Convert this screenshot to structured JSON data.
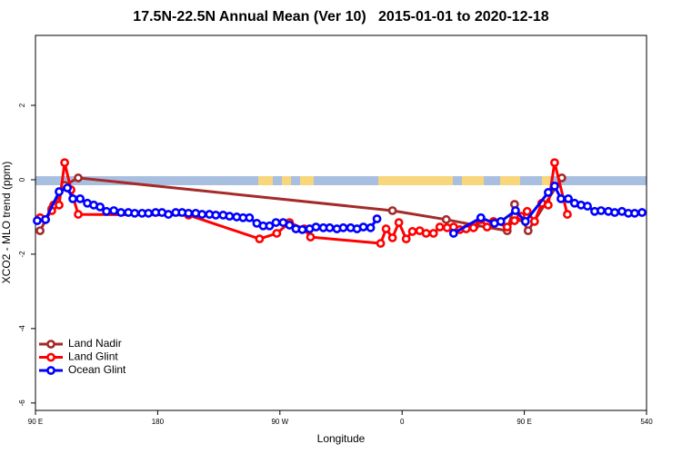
{
  "chart_data": {
    "type": "line",
    "title": "17.5N-22.5N Annual Mean (Ver 10)   2015-01-01 to 2020-12-18",
    "x_label": "Longitude",
    "y_label": "XCO2 - MLO trend (ppm)",
    "xlim": [
      90,
      540
    ],
    "ylim": [
      -6.2,
      3.88
    ],
    "xticks": [
      {
        "value": 90,
        "label": "90 E"
      },
      180,
      {
        "value": 270,
        "label": "90 W"
      },
      {
        "value": 360,
        "label": "0"
      },
      {
        "value": 450,
        "label": "90 E"
      },
      540
    ],
    "yticks": [
      2,
      0,
      -2,
      -4,
      -6
    ],
    "legend": "bottom-left",
    "series": [
      {
        "name": "Land Nadir",
        "color": "#a52a2a",
        "x": [
          93.4,
          102.0,
          111.5,
          121.5,
          352.9,
          392.5,
          413.9,
          437.4,
          442.8,
          447.5,
          452.8,
          477.6
        ],
        "values": [
          -1.37,
          -0.78,
          -0.15,
          0.05,
          -0.83,
          -1.07,
          -1.22,
          -1.37,
          -0.66,
          -1.02,
          -1.37,
          0.05
        ]
      },
      {
        "name": "Land Glint",
        "color": "#ff0000",
        "x": [
          93.4,
          97.4,
          102.0,
          103.4,
          107.4,
          111.5,
          116.2,
          121.5,
          202.7,
          255.0,
          267.7,
          277.1,
          287.9,
          292.6,
          344.2,
          348.2,
          352.9,
          357.6,
          363.0,
          367.6,
          373.0,
          377.7,
          383.1,
          387.8,
          393.2,
          397.9,
          402.5,
          407.2,
          412.6,
          418.0,
          422.6,
          427.3,
          437.4,
          442.8,
          447.5,
          452.1,
          457.5,
          462.9,
          467.6,
          472.3,
          481.7
        ],
        "values": [
          -1.02,
          -1.07,
          -0.83,
          -0.68,
          -0.68,
          0.46,
          -0.27,
          -0.93,
          -0.95,
          -1.59,
          -1.44,
          -1.15,
          -1.32,
          -1.54,
          -1.71,
          -1.32,
          -1.56,
          -1.15,
          -1.59,
          -1.39,
          -1.37,
          -1.44,
          -1.44,
          -1.27,
          -1.29,
          -1.27,
          -1.34,
          -1.32,
          -1.29,
          -1.07,
          -1.27,
          -1.12,
          -1.27,
          -1.1,
          -0.98,
          -0.85,
          -1.12,
          -0.63,
          -0.68,
          0.46,
          -0.93
        ]
      },
      {
        "name": "Ocean Glint",
        "color": "#0000ff",
        "x": [
          91.3,
          97.4,
          107.4,
          113.5,
          117.5,
          122.9,
          128.2,
          132.9,
          137.6,
          142.3,
          147.7,
          153.0,
          158.4,
          163.1,
          168.5,
          173.2,
          178.5,
          183.2,
          187.9,
          193.3,
          198.0,
          202.7,
          208.0,
          212.7,
          218.1,
          222.8,
          228.2,
          232.9,
          238.2,
          242.9,
          247.6,
          253.0,
          257.7,
          262.4,
          267.1,
          272.4,
          277.1,
          281.8,
          286.5,
          291.9,
          296.6,
          302.0,
          306.7,
          312.0,
          316.7,
          322.1,
          326.8,
          331.5,
          336.8,
          341.5,
          null,
          397.9,
          418.0,
          428.0,
          432.7,
          443.5,
          450.8,
          467.6,
          472.3,
          477.0,
          482.4,
          487.0,
          491.8,
          496.5,
          501.8,
          506.5,
          511.9,
          516.6,
          521.9,
          526.6,
          531.3,
          536.7
        ],
        "values": [
          -1.1,
          -1.07,
          -0.32,
          -0.22,
          -0.51,
          -0.51,
          -0.63,
          -0.68,
          -0.73,
          -0.85,
          -0.83,
          -0.88,
          -0.88,
          -0.9,
          -0.9,
          -0.9,
          -0.88,
          -0.88,
          -0.93,
          -0.88,
          -0.88,
          -0.9,
          -0.9,
          -0.93,
          -0.93,
          -0.95,
          -0.95,
          -0.98,
          -1.0,
          -1.02,
          -1.02,
          -1.17,
          -1.24,
          -1.24,
          -1.15,
          -1.15,
          -1.22,
          -1.32,
          -1.34,
          -1.32,
          -1.27,
          -1.29,
          -1.29,
          -1.32,
          -1.29,
          -1.29,
          -1.32,
          -1.27,
          -1.29,
          -1.05,
          null,
          -1.44,
          -1.02,
          -1.17,
          -1.12,
          -0.83,
          -1.12,
          -0.34,
          -0.17,
          -0.51,
          -0.51,
          -0.63,
          -0.68,
          -0.71,
          -0.85,
          -0.83,
          -0.85,
          -0.88,
          -0.85,
          -0.9,
          -0.9,
          -0.88
        ]
      }
    ]
  }
}
